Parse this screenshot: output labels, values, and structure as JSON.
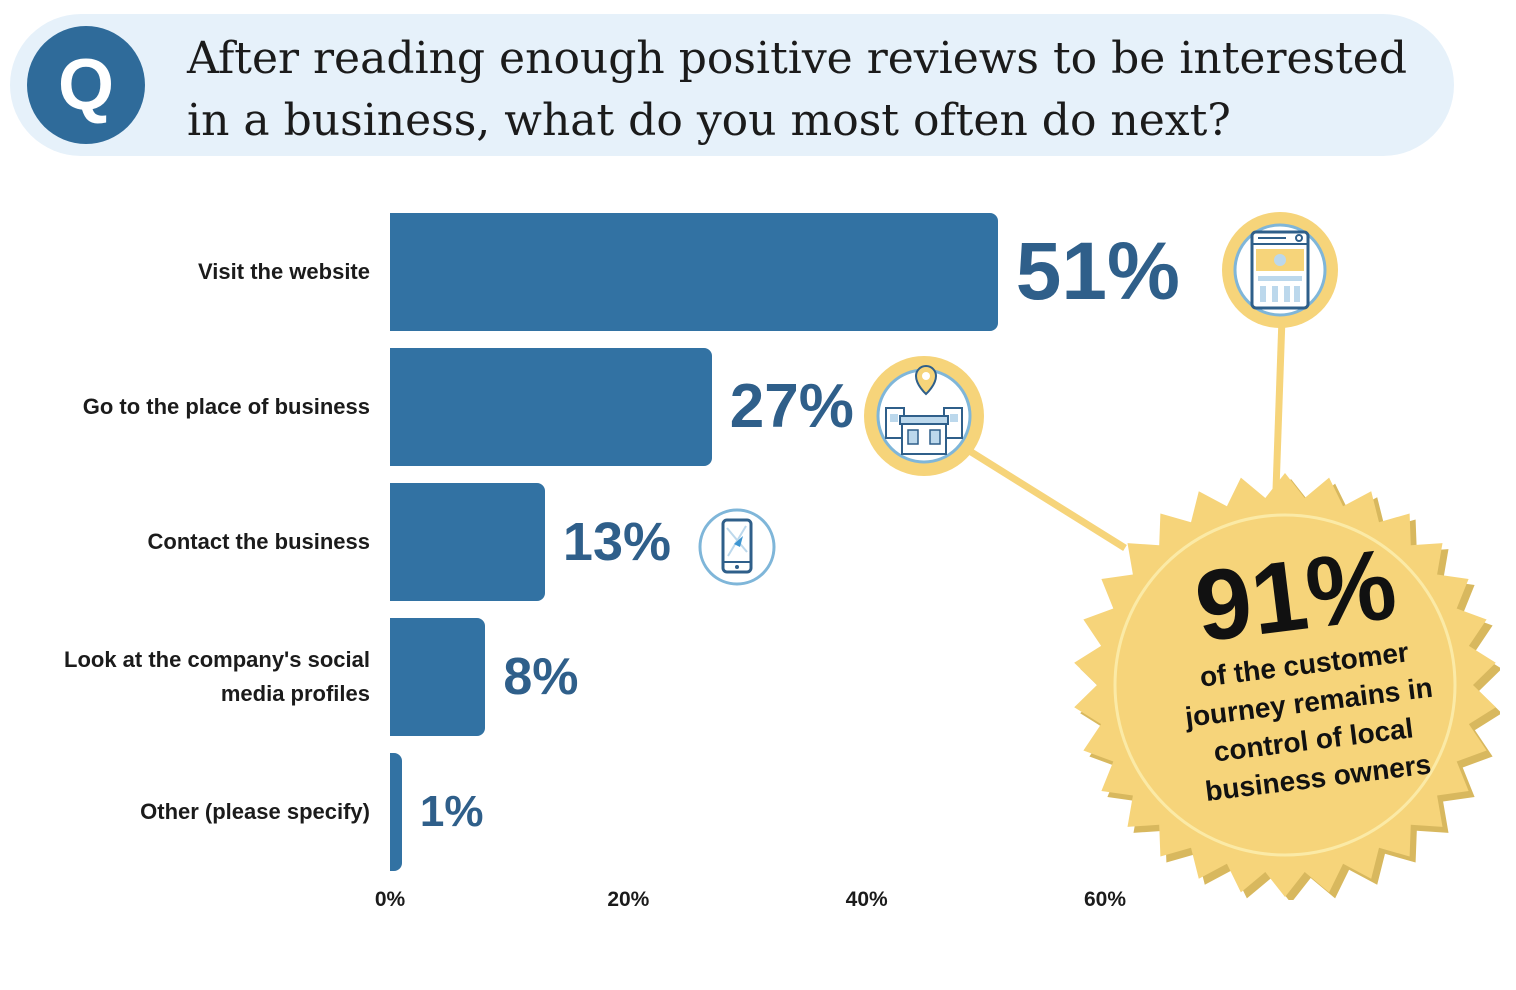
{
  "question": {
    "badge_letter": "Q",
    "text_line1": "After reading enough positive reviews to be interested",
    "text_line2": "in a business, what do you most often do next?"
  },
  "chart_data": {
    "type": "bar",
    "orientation": "horizontal",
    "categories": [
      "Visit the website",
      "Go to the place of business",
      "Contact the business",
      "Look at the company's social media profiles",
      "Other (please specify)"
    ],
    "values": [
      51,
      27,
      13,
      8,
      1
    ],
    "value_labels": [
      "51%",
      "27%",
      "13%",
      "8%",
      "1%"
    ],
    "xticks": [
      "0%",
      "20%",
      "40%",
      "60%"
    ],
    "xlim": [
      0,
      60
    ],
    "grid": false,
    "bar_color": "#3272a3",
    "label_color": "#2f5f8a"
  },
  "callout": {
    "big": "91%",
    "line1": "of the customer",
    "line2": "journey remains in",
    "line3": "control of local",
    "line4": "business owners",
    "color": "#f6d47a"
  },
  "icons": [
    "website-icon",
    "map-pin-storefront-icon",
    "mobile-phone-map-icon"
  ]
}
